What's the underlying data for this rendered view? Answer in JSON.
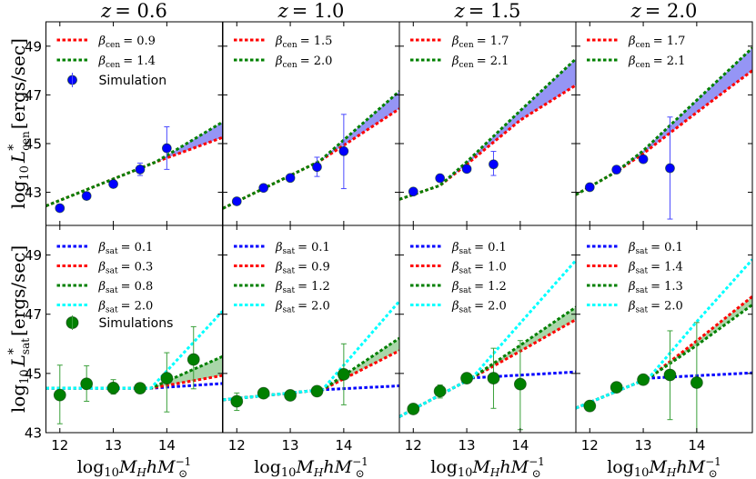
{
  "colors": {
    "red": "#ff0000",
    "green": "#008000",
    "blue": "#0000ff",
    "cyan": "#00ffff",
    "central_fill": "#9595f5",
    "satellite_fill": "#a9d6a9",
    "central_errbar": "#4a4aff",
    "satellite_errbar": "#3aa03a"
  },
  "axes": {
    "xlim": [
      11.74,
      15.04
    ],
    "central_ylim": [
      41.64,
      50
    ],
    "satellite_ylim": [
      43,
      50
    ],
    "xticks": [
      "12",
      "13",
      "14"
    ],
    "yticks": [
      "43",
      "45",
      "47",
      "49"
    ],
    "central_ylabel": {
      "pre": "log",
      "pre_sub": "10",
      "var": "L",
      "sup": "*",
      "sub": "cen",
      "unit": "[ergs/sec]"
    },
    "satellite_ylabel": {
      "pre": "log",
      "pre_sub": "10",
      "var": "L",
      "sup": "*",
      "sub": "sat",
      "unit": "[ergs/sec]"
    },
    "xlabel": {
      "pre": "log",
      "pre_sub": "10",
      "var": "M",
      "var_sub": "H",
      "var2": "hM",
      "var2_sub": "⊙",
      "var2_sup": "−1"
    }
  },
  "chart_data": [
    {
      "type": "line",
      "title": {
        "var": "z",
        "value": "= 0.6"
      },
      "central": {
        "series": [
          {
            "label": {
              "sym": "β",
              "sub": "cen",
              "value": "= 0.9"
            },
            "color": "red",
            "points": [
              [
                11.74,
                42.44
              ],
              [
                13.8,
                44.25
              ],
              [
                15.04,
                45.25
              ]
            ]
          },
          {
            "label": {
              "sym": "β",
              "sub": "cen",
              "value": "= 1.4"
            },
            "color": "green",
            "points": [
              [
                11.74,
                42.44
              ],
              [
                13.8,
                44.25
              ],
              [
                15.04,
                45.88
              ]
            ]
          }
        ],
        "fill_between": [
          0,
          1
        ],
        "simulation": {
          "label": "Simulation",
          "color": "blue",
          "x": [
            12,
            12.5,
            13,
            13.5,
            14
          ],
          "y": [
            42.35,
            42.85,
            43.34,
            43.94,
            44.81
          ],
          "err_low": [
            42.3,
            42.8,
            43.29,
            43.69,
            43.94
          ],
          "err_high": [
            42.4,
            42.9,
            43.39,
            44.2,
            45.69
          ]
        }
      },
      "satellite": {
        "series": [
          {
            "label": {
              "sym": "β",
              "sub": "sat",
              "value": "= 0.1"
            },
            "color": "blue",
            "points": [
              [
                11.74,
                44.5
              ],
              [
                13.7,
                44.5
              ],
              [
                15.04,
                44.66
              ]
            ]
          },
          {
            "label": {
              "sym": "β",
              "sub": "sat",
              "value": "= 0.3"
            },
            "color": "red",
            "points": [
              [
                11.74,
                44.5
              ],
              [
                13.7,
                44.5
              ],
              [
                15.04,
                44.93
              ]
            ]
          },
          {
            "label": {
              "sym": "β",
              "sub": "sat",
              "value": "= 0.8"
            },
            "color": "green",
            "points": [
              [
                11.74,
                44.5
              ],
              [
                13.7,
                44.5
              ],
              [
                15.04,
                45.57
              ]
            ]
          },
          {
            "label": {
              "sym": "β",
              "sub": "sat",
              "value": "= 2.0"
            },
            "color": "cyan",
            "points": [
              [
                11.74,
                44.5
              ],
              [
                13.7,
                44.5
              ],
              [
                15.04,
                47.1
              ]
            ]
          }
        ],
        "fill_between": [
          1,
          2
        ],
        "simulation": {
          "label": "Simulations",
          "color": "green",
          "x": [
            12,
            12.5,
            13,
            13.5,
            14,
            14.5
          ],
          "y": [
            44.27,
            44.65,
            44.51,
            44.5,
            44.84,
            45.47
          ],
          "err_low": [
            43.3,
            44.06,
            44.3,
            44.45,
            43.7,
            44.48
          ],
          "err_high": [
            45.28,
            45.26,
            44.79,
            44.55,
            45.7,
            46.58
          ]
        }
      }
    },
    {
      "type": "line",
      "title": {
        "var": "z",
        "value": "= 1.0"
      },
      "central": {
        "series": [
          {
            "label": {
              "sym": "β",
              "sub": "cen",
              "value": "= 1.5"
            },
            "color": "red",
            "points": [
              [
                11.74,
                42.34
              ],
              [
                13.55,
                44.28
              ],
              [
                15.04,
                46.43
              ]
            ]
          },
          {
            "label": {
              "sym": "β",
              "sub": "cen",
              "value": "= 2.0"
            },
            "color": "green",
            "points": [
              [
                11.74,
                42.34
              ],
              [
                13.55,
                44.28
              ],
              [
                15.04,
                47.15
              ]
            ]
          }
        ],
        "fill_between": [
          0,
          1
        ],
        "simulation": {
          "color": "blue",
          "x": [
            12,
            12.5,
            13,
            13.5,
            14
          ],
          "y": [
            42.63,
            43.18,
            43.59,
            44.04,
            44.69
          ],
          "err_low": [
            42.58,
            43.13,
            43.54,
            43.65,
            43.15
          ],
          "err_high": [
            42.68,
            43.23,
            43.64,
            44.44,
            46.2
          ]
        }
      },
      "satellite": {
        "series": [
          {
            "label": {
              "sym": "β",
              "sub": "sat",
              "value": "= 0.1"
            },
            "color": "blue",
            "points": [
              [
                11.74,
                44.11
              ],
              [
                13.6,
                44.45
              ],
              [
                15.04,
                44.58
              ]
            ]
          },
          {
            "label": {
              "sym": "β",
              "sub": "sat",
              "value": "= 0.9"
            },
            "color": "red",
            "points": [
              [
                11.74,
                44.11
              ],
              [
                13.6,
                44.45
              ],
              [
                15.04,
                45.77
              ]
            ]
          },
          {
            "label": {
              "sym": "β",
              "sub": "sat",
              "value": "= 1.2"
            },
            "color": "green",
            "points": [
              [
                11.74,
                44.11
              ],
              [
                13.6,
                44.45
              ],
              [
                15.04,
                46.19
              ]
            ]
          },
          {
            "label": {
              "sym": "β",
              "sub": "sat",
              "value": "= 2.0"
            },
            "color": "cyan",
            "points": [
              [
                11.74,
                44.11
              ],
              [
                13.6,
                44.45
              ],
              [
                15.04,
                47.44
              ]
            ]
          }
        ],
        "fill_between": [
          1,
          2
        ],
        "simulation": {
          "color": "green",
          "x": [
            12,
            12.5,
            13,
            13.5,
            14
          ],
          "y": [
            44.06,
            44.33,
            44.26,
            44.4,
            44.97
          ],
          "err_low": [
            43.75,
            44.28,
            44.21,
            44.35,
            43.94
          ],
          "err_high": [
            44.34,
            44.38,
            44.31,
            44.45,
            46.0
          ]
        }
      }
    },
    {
      "type": "line",
      "title": {
        "var": "z",
        "value": "= 1.5"
      },
      "central": {
        "series": [
          {
            "label": {
              "sym": "β",
              "sub": "cen",
              "value": "= 1.7"
            },
            "color": "red",
            "points": [
              [
                11.74,
                42.71
              ],
              [
                12.5,
                43.28
              ],
              [
                13,
                44.15
              ],
              [
                14,
                45.96
              ],
              [
                15.04,
                47.4
              ]
            ]
          },
          {
            "label": {
              "sym": "β",
              "sub": "cen",
              "value": "= 2.1"
            },
            "color": "green",
            "points": [
              [
                11.74,
                42.71
              ],
              [
                12.5,
                43.28
              ],
              [
                13,
                44.25
              ],
              [
                14,
                46.35
              ],
              [
                15.04,
                48.48
              ]
            ]
          }
        ],
        "fill_between": [
          0,
          1
        ],
        "simulation": {
          "color": "blue",
          "x": [
            12,
            12.5,
            13,
            13.5
          ],
          "y": [
            43.03,
            43.58,
            43.96,
            44.15
          ],
          "err_low": [
            42.98,
            43.53,
            43.91,
            43.69
          ],
          "err_high": [
            43.08,
            43.63,
            44.01,
            44.68
          ]
        }
      },
      "satellite": {
        "series": [
          {
            "label": {
              "sym": "β",
              "sub": "sat",
              "value": "= 0.1"
            },
            "color": "blue",
            "points": [
              [
                11.74,
                43.54
              ],
              [
                13.1,
                44.85
              ],
              [
                15.04,
                45.05
              ]
            ]
          },
          {
            "label": {
              "sym": "β",
              "sub": "sat",
              "value": "= 1.0"
            },
            "color": "red",
            "points": [
              [
                11.74,
                43.54
              ],
              [
                13.1,
                44.85
              ],
              [
                14,
                45.75
              ],
              [
                15.04,
                46.82
              ]
            ]
          },
          {
            "label": {
              "sym": "β",
              "sub": "sat",
              "value": "= 1.2"
            },
            "color": "green",
            "points": [
              [
                11.74,
                43.54
              ],
              [
                13.1,
                44.85
              ],
              [
                14,
                45.95
              ],
              [
                15.04,
                47.24
              ]
            ]
          },
          {
            "label": {
              "sym": "β",
              "sub": "sat",
              "value": "= 2.0"
            },
            "color": "cyan",
            "points": [
              [
                11.74,
                43.54
              ],
              [
                13.1,
                44.85
              ],
              [
                14,
                46.7
              ],
              [
                15.04,
                48.82
              ]
            ]
          }
        ],
        "fill_between": [
          1,
          2
        ],
        "simulation": {
          "color": "green",
          "x": [
            12,
            12.5,
            13,
            13.5,
            14
          ],
          "y": [
            43.8,
            44.4,
            44.84,
            44.84,
            44.64
          ],
          "err_low": [
            43.75,
            44.17,
            44.79,
            43.82,
            43.1
          ],
          "err_high": [
            43.85,
            44.61,
            44.89,
            45.85,
            46.11
          ]
        }
      }
    },
    {
      "type": "line",
      "title": {
        "var": "z",
        "value": "= 2.0"
      },
      "central": {
        "series": [
          {
            "label": {
              "sym": "β",
              "sub": "cen",
              "value": "= 1.7"
            },
            "color": "red",
            "points": [
              [
                11.74,
                42.9
              ],
              [
                12.5,
                43.85
              ],
              [
                13,
                44.59
              ],
              [
                14,
                46.28
              ],
              [
                15.04,
                48.0
              ]
            ]
          },
          {
            "label": {
              "sym": "β",
              "sub": "cen",
              "value": "= 2.1"
            },
            "color": "green",
            "points": [
              [
                11.74,
                42.9
              ],
              [
                12.5,
                43.85
              ],
              [
                13,
                44.71
              ],
              [
                14,
                46.78
              ],
              [
                15.04,
                48.93
              ]
            ]
          }
        ],
        "fill_between": [
          0,
          1
        ],
        "simulation": {
          "color": "blue",
          "x": [
            12,
            12.5,
            13,
            13.5
          ],
          "y": [
            43.21,
            43.93,
            44.36,
            43.99
          ],
          "err_low": [
            43.16,
            43.88,
            44.31,
            41.9
          ],
          "err_high": [
            43.26,
            43.98,
            44.41,
            46.09
          ]
        }
      },
      "satellite": {
        "series": [
          {
            "label": {
              "sym": "β",
              "sub": "sat",
              "value": "= 0.1"
            },
            "color": "blue",
            "points": [
              [
                11.74,
                43.83
              ],
              [
                13.1,
                44.84
              ],
              [
                15.04,
                45.02
              ]
            ]
          },
          {
            "label": {
              "sym": "β",
              "sub": "sat",
              "value": "= 1.4"
            },
            "color": "red",
            "points": [
              [
                11.74,
                43.83
              ],
              [
                13.1,
                44.84
              ],
              [
                14,
                46.1
              ],
              [
                15.04,
                47.6
              ]
            ]
          },
          {
            "label": {
              "sym": "β",
              "sub": "sat",
              "value": "= 1.3"
            },
            "color": "green",
            "points": [
              [
                11.74,
                43.83
              ],
              [
                13.1,
                44.84
              ],
              [
                14,
                45.95
              ],
              [
                15.04,
                47.32
              ]
            ]
          },
          {
            "label": {
              "sym": "β",
              "sub": "sat",
              "value": "= 2.0"
            },
            "color": "cyan",
            "points": [
              [
                11.74,
                43.83
              ],
              [
                13.1,
                44.84
              ],
              [
                14,
                46.75
              ],
              [
                15.04,
                48.85
              ]
            ]
          }
        ],
        "fill_between": [
          1,
          2
        ],
        "simulation": {
          "color": "green",
          "x": [
            12,
            12.5,
            13,
            13.5,
            14
          ],
          "y": [
            43.9,
            44.53,
            44.79,
            44.95,
            44.69
          ],
          "err_low": [
            43.85,
            44.48,
            44.74,
            43.44,
            42.97
          ],
          "err_high": [
            43.95,
            44.58,
            44.84,
            46.44,
            46.72
          ]
        }
      }
    }
  ]
}
